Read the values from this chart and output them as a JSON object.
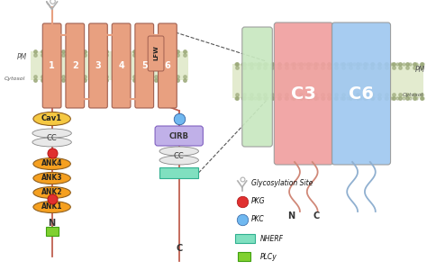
{
  "bg_color": "#ffffff",
  "tm_color": "#E8A080",
  "mem_color_fill": "#C8D8A0",
  "mem_dot_color": "#9AA878",
  "cav1_color": "#F5C842",
  "cc_color": "#E8E8E8",
  "ank_color": "#F5A020",
  "pkg_color": "#E03030",
  "pkc_color": "#70B8F0",
  "nherf_color": "#80E0C0",
  "plcy_color": "#80D030",
  "cirb_color": "#C0B0E8",
  "c3_color": "#F0A0A0",
  "c6_color": "#A0C8F0",
  "csmall_color": "#C8E8C0",
  "line_color": "#C06050",
  "tm_labels": [
    "1",
    "2",
    "3",
    "4",
    "5",
    "6"
  ],
  "lfw_label": "LFW",
  "pm_label": "PM",
  "cytosol_label": "Cytosol",
  "n_label": "N",
  "c_label": "C",
  "c3_label": "C3",
  "c6_label": "C6",
  "ank_labels": [
    "ANK4",
    "ANK3",
    "ANK2",
    "ANK1"
  ],
  "legend_labels": [
    "Glycosylation Site",
    "PKG",
    "PKC",
    "NHERF",
    "PLCy"
  ]
}
